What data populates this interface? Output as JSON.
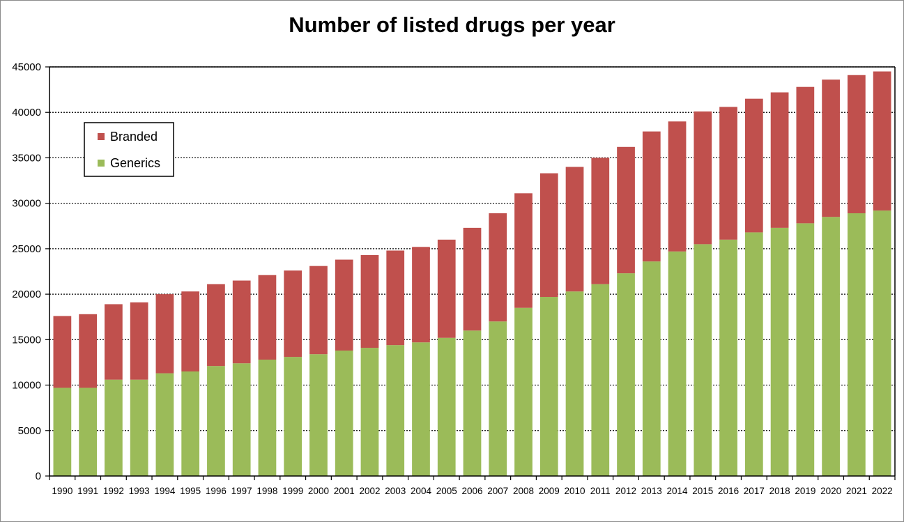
{
  "chart_data": {
    "type": "bar",
    "stacked": true,
    "title": "Number of listed drugs per year",
    "xlabel": "",
    "ylabel": "",
    "ylim": [
      0,
      45000
    ],
    "yticks": [
      0,
      5000,
      10000,
      15000,
      20000,
      25000,
      30000,
      35000,
      40000,
      45000
    ],
    "grid": true,
    "legend_position": "top-left",
    "categories": [
      "1990",
      "1991",
      "1992",
      "1993",
      "1994",
      "1995",
      "1996",
      "1997",
      "1998",
      "1999",
      "2000",
      "2001",
      "2002",
      "2003",
      "2004",
      "2005",
      "2006",
      "2007",
      "2008",
      "2009",
      "2010",
      "2011",
      "2012",
      "2013",
      "2014",
      "2015",
      "2016",
      "2017",
      "2018",
      "2019",
      "2020",
      "2021",
      "2022"
    ],
    "series": [
      {
        "name": "Generics",
        "color": "#9bbb59",
        "values": [
          9700,
          9700,
          10600,
          10600,
          11300,
          11500,
          12100,
          12400,
          12800,
          13100,
          13400,
          13800,
          14100,
          14400,
          14700,
          15200,
          16000,
          17000,
          18500,
          19700,
          20300,
          21100,
          22300,
          23600,
          24700,
          25500,
          26000,
          26800,
          27300,
          27800,
          28500,
          28900,
          29200
        ]
      },
      {
        "name": "Branded",
        "color": "#c0504d",
        "values": [
          7900,
          8100,
          8300,
          8500,
          8700,
          8800,
          9000,
          9100,
          9300,
          9500,
          9700,
          10000,
          10200,
          10400,
          10500,
          10800,
          11300,
          11900,
          12600,
          13600,
          13700,
          13900,
          13900,
          14300,
          14300,
          14600,
          14600,
          14700,
          14900,
          15000,
          15100,
          15200,
          15300
        ]
      }
    ]
  }
}
